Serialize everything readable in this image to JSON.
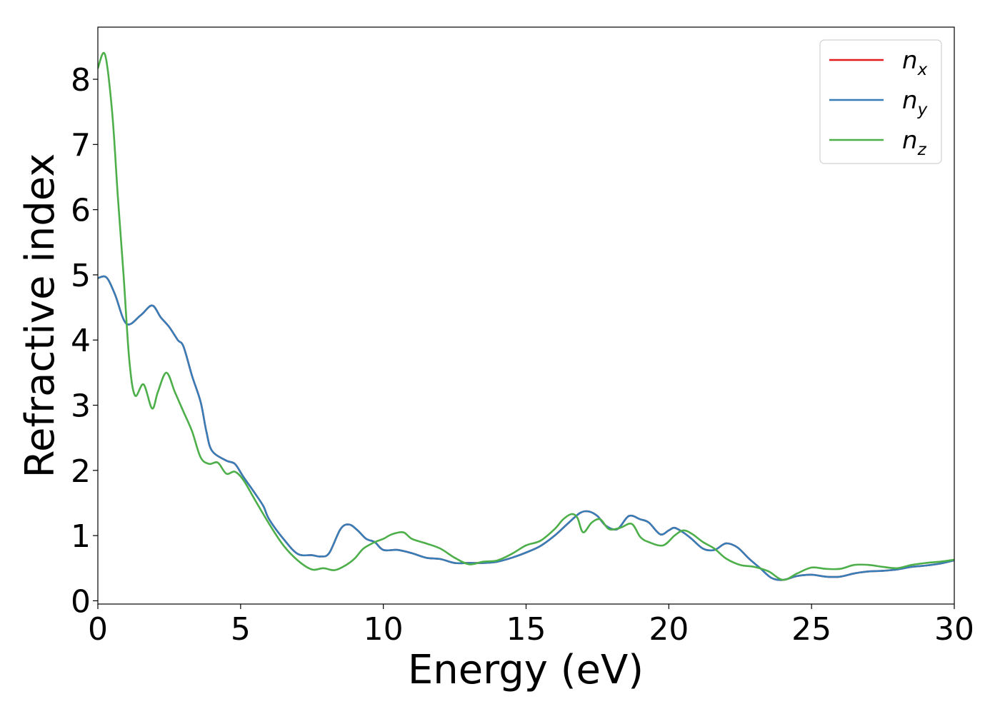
{
  "chart_data": {
    "type": "line",
    "title": "",
    "xlabel": "Energy (eV)",
    "ylabel": "Refractive index",
    "xlim": [
      0,
      30
    ],
    "ylim": [
      -0.05,
      8.8
    ],
    "xticks": [
      0,
      5,
      10,
      15,
      20,
      25,
      30
    ],
    "yticks": [
      0,
      1,
      2,
      3,
      4,
      5,
      6,
      7,
      8
    ],
    "xtick_labels": [
      "0",
      "5",
      "10",
      "15",
      "20",
      "25",
      "30"
    ],
    "ytick_labels": [
      "0",
      "1",
      "2",
      "3",
      "4",
      "5",
      "6",
      "7",
      "8"
    ],
    "grid": false,
    "legend_position": "top-right",
    "series": [
      {
        "name": "n",
        "subscript": "x",
        "color": "#e41a1c",
        "x": [
          0,
          0.3,
          0.6,
          1.0,
          1.5,
          1.9,
          2.2,
          2.5,
          2.8,
          3.0,
          3.3,
          3.6,
          3.8,
          4.0,
          4.5,
          4.8,
          5.1,
          5.5,
          5.8,
          6.0,
          6.5,
          7.0,
          7.5,
          7.8,
          8.1,
          8.5,
          8.8,
          9.1,
          9.4,
          9.7,
          10.0,
          10.5,
          11.0,
          11.5,
          12.0,
          12.5,
          13.0,
          13.5,
          14.0,
          14.5,
          15.0,
          15.5,
          16.0,
          16.5,
          16.9,
          17.2,
          17.5,
          17.8,
          18.2,
          18.6,
          19.0,
          19.3,
          19.7,
          20.0,
          20.2,
          20.5,
          20.8,
          21.2,
          21.6,
          22.0,
          22.4,
          22.8,
          23.2,
          23.6,
          24.0,
          24.5,
          25.0,
          25.5,
          26.0,
          26.5,
          27.0,
          27.5,
          28.0,
          28.5,
          29.0,
          29.5,
          30.0
        ],
        "y": [
          4.95,
          4.96,
          4.7,
          4.25,
          4.38,
          4.53,
          4.35,
          4.2,
          4.0,
          3.9,
          3.45,
          3.05,
          2.6,
          2.3,
          2.15,
          2.1,
          1.9,
          1.65,
          1.45,
          1.25,
          0.95,
          0.72,
          0.7,
          0.68,
          0.73,
          1.1,
          1.17,
          1.08,
          0.95,
          0.9,
          0.78,
          0.78,
          0.73,
          0.66,
          0.64,
          0.58,
          0.58,
          0.58,
          0.6,
          0.66,
          0.74,
          0.84,
          1.0,
          1.2,
          1.35,
          1.37,
          1.3,
          1.15,
          1.1,
          1.3,
          1.25,
          1.2,
          1.02,
          1.08,
          1.12,
          1.05,
          0.95,
          0.8,
          0.78,
          0.88,
          0.82,
          0.65,
          0.5,
          0.35,
          0.32,
          0.38,
          0.4,
          0.37,
          0.37,
          0.42,
          0.45,
          0.46,
          0.48,
          0.52,
          0.54,
          0.57,
          0.62
        ]
      },
      {
        "name": "n",
        "subscript": "y",
        "color": "#377eb8",
        "x": [
          0,
          0.3,
          0.6,
          1.0,
          1.5,
          1.9,
          2.2,
          2.5,
          2.8,
          3.0,
          3.3,
          3.6,
          3.8,
          4.0,
          4.5,
          4.8,
          5.1,
          5.5,
          5.8,
          6.0,
          6.5,
          7.0,
          7.5,
          7.8,
          8.1,
          8.5,
          8.8,
          9.1,
          9.4,
          9.7,
          10.0,
          10.5,
          11.0,
          11.5,
          12.0,
          12.5,
          13.0,
          13.5,
          14.0,
          14.5,
          15.0,
          15.5,
          16.0,
          16.5,
          16.9,
          17.2,
          17.5,
          17.8,
          18.2,
          18.6,
          19.0,
          19.3,
          19.7,
          20.0,
          20.2,
          20.5,
          20.8,
          21.2,
          21.6,
          22.0,
          22.4,
          22.8,
          23.2,
          23.6,
          24.0,
          24.5,
          25.0,
          25.5,
          26.0,
          26.5,
          27.0,
          27.5,
          28.0,
          28.5,
          29.0,
          29.5,
          30.0
        ],
        "y": [
          4.95,
          4.96,
          4.7,
          4.25,
          4.38,
          4.53,
          4.35,
          4.2,
          4.0,
          3.9,
          3.45,
          3.05,
          2.6,
          2.3,
          2.15,
          2.1,
          1.9,
          1.65,
          1.45,
          1.25,
          0.95,
          0.72,
          0.7,
          0.68,
          0.73,
          1.1,
          1.17,
          1.08,
          0.95,
          0.9,
          0.78,
          0.78,
          0.73,
          0.66,
          0.64,
          0.58,
          0.58,
          0.58,
          0.6,
          0.66,
          0.74,
          0.84,
          1.0,
          1.2,
          1.35,
          1.37,
          1.3,
          1.15,
          1.1,
          1.3,
          1.25,
          1.2,
          1.02,
          1.08,
          1.12,
          1.05,
          0.95,
          0.8,
          0.78,
          0.88,
          0.82,
          0.65,
          0.5,
          0.35,
          0.32,
          0.38,
          0.4,
          0.37,
          0.37,
          0.42,
          0.45,
          0.46,
          0.48,
          0.52,
          0.54,
          0.57,
          0.62
        ]
      },
      {
        "name": "n",
        "subscript": "z",
        "color": "#4daf4a",
        "x": [
          0,
          0.25,
          0.5,
          0.7,
          0.9,
          1.1,
          1.3,
          1.6,
          1.9,
          2.1,
          2.4,
          2.7,
          3.0,
          3.3,
          3.6,
          3.9,
          4.2,
          4.5,
          4.8,
          5.1,
          5.5,
          6.0,
          6.5,
          7.0,
          7.5,
          7.9,
          8.3,
          8.7,
          9.0,
          9.3,
          9.7,
          10.0,
          10.3,
          10.7,
          11.0,
          11.5,
          12.0,
          12.5,
          13.0,
          13.5,
          14.0,
          14.5,
          15.0,
          15.5,
          16.0,
          16.3,
          16.6,
          16.8,
          17.0,
          17.3,
          17.6,
          17.9,
          18.3,
          18.7,
          19.0,
          19.3,
          19.8,
          20.2,
          20.5,
          20.8,
          21.2,
          21.6,
          22.0,
          22.5,
          23.0,
          23.5,
          24.0,
          24.5,
          25.0,
          25.5,
          26.0,
          26.5,
          27.0,
          27.5,
          28.0,
          28.5,
          29.0,
          29.5,
          30.0
        ],
        "y": [
          8.17,
          8.38,
          7.5,
          6.2,
          5.0,
          3.7,
          3.15,
          3.32,
          2.95,
          3.2,
          3.5,
          3.2,
          2.9,
          2.6,
          2.2,
          2.1,
          2.12,
          1.95,
          1.98,
          1.85,
          1.55,
          1.18,
          0.85,
          0.62,
          0.48,
          0.5,
          0.47,
          0.55,
          0.65,
          0.8,
          0.9,
          0.95,
          1.02,
          1.05,
          0.95,
          0.88,
          0.8,
          0.66,
          0.56,
          0.6,
          0.62,
          0.72,
          0.85,
          0.92,
          1.1,
          1.25,
          1.33,
          1.27,
          1.05,
          1.2,
          1.25,
          1.1,
          1.12,
          1.18,
          0.98,
          0.9,
          0.85,
          1.0,
          1.08,
          1.03,
          0.9,
          0.8,
          0.65,
          0.55,
          0.52,
          0.45,
          0.32,
          0.42,
          0.51,
          0.49,
          0.49,
          0.55,
          0.55,
          0.52,
          0.5,
          0.55,
          0.58,
          0.6,
          0.63
        ]
      }
    ]
  }
}
